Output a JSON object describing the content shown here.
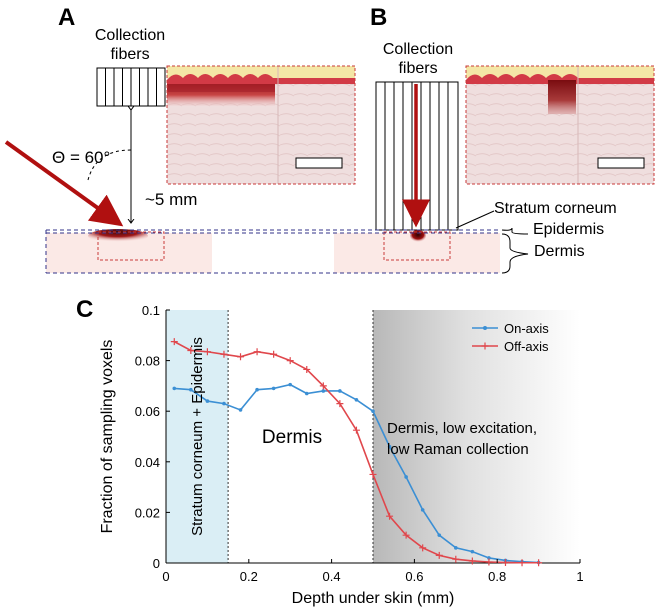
{
  "panels": {
    "a": {
      "letter": "A",
      "collection_fibers": [
        "Collection",
        "fibers"
      ],
      "angle": "Θ = 60°",
      "distance": "~5 mm"
    },
    "b": {
      "letter": "B",
      "collection_fibers": [
        "Collection",
        "fibers"
      ],
      "layer_labels": [
        "Stratum corneum",
        "Epidermis",
        "Dermis"
      ]
    },
    "c": {
      "letter": "C"
    }
  },
  "colors": {
    "on_axis": "#3b8fd4",
    "off_axis": "#e0474c",
    "laser": "#b01010",
    "stratum_shade": "#daeef5",
    "skin_top": "#f7e7a2",
    "tissue": "#f2d9d6"
  },
  "chart_data": {
    "type": "line",
    "xlabel": "Depth under skin (mm)",
    "ylabel": "Fraction of sampling voxels",
    "xlim": [
      0,
      1
    ],
    "ylim": [
      0,
      0.1
    ],
    "x_ticks": [
      "0",
      "0.2",
      "0.4",
      "0.6",
      "0.8",
      "1"
    ],
    "y_ticks": [
      "0",
      "0.02",
      "0.04",
      "0.06",
      "0.08",
      "0.1"
    ],
    "legend_position": "top-right",
    "annotations": {
      "stratum": "Stratum corneum + Epidermis",
      "dermis": "Dermis",
      "dermis_low": [
        "Dermis, low excitation,",
        "low Raman collection"
      ]
    },
    "regions": [
      {
        "name": "stratum-epidermis",
        "x": [
          0,
          0.15
        ]
      },
      {
        "name": "dermis-low",
        "x": [
          0.5,
          1
        ]
      }
    ],
    "series": [
      {
        "name": "On-axis",
        "color": "#3b8fd4",
        "marker": "dot",
        "x": [
          0.02,
          0.06,
          0.1,
          0.14,
          0.18,
          0.22,
          0.26,
          0.3,
          0.34,
          0.38,
          0.42,
          0.46,
          0.5,
          0.54,
          0.58,
          0.62,
          0.66,
          0.7,
          0.74,
          0.78,
          0.82,
          0.86,
          0.9
        ],
        "values": [
          0.069,
          0.0685,
          0.064,
          0.063,
          0.0605,
          0.0685,
          0.069,
          0.0705,
          0.067,
          0.068,
          0.068,
          0.0645,
          0.06,
          0.046,
          0.034,
          0.021,
          0.011,
          0.006,
          0.0045,
          0.002,
          0.001,
          0.0005,
          0.0002
        ]
      },
      {
        "name": "Off-axis",
        "color": "#e0474c",
        "marker": "plus",
        "x": [
          0.02,
          0.06,
          0.1,
          0.14,
          0.18,
          0.22,
          0.26,
          0.3,
          0.34,
          0.38,
          0.42,
          0.46,
          0.5,
          0.54,
          0.58,
          0.62,
          0.66,
          0.7,
          0.74,
          0.78,
          0.82,
          0.86,
          0.9
        ],
        "values": [
          0.0875,
          0.084,
          0.0835,
          0.0825,
          0.0815,
          0.0835,
          0.0825,
          0.08,
          0.0765,
          0.07,
          0.063,
          0.0525,
          0.035,
          0.0185,
          0.011,
          0.006,
          0.003,
          0.0015,
          0.0008,
          0.0004,
          0.0002,
          0.0001,
          0.0001
        ]
      }
    ]
  }
}
